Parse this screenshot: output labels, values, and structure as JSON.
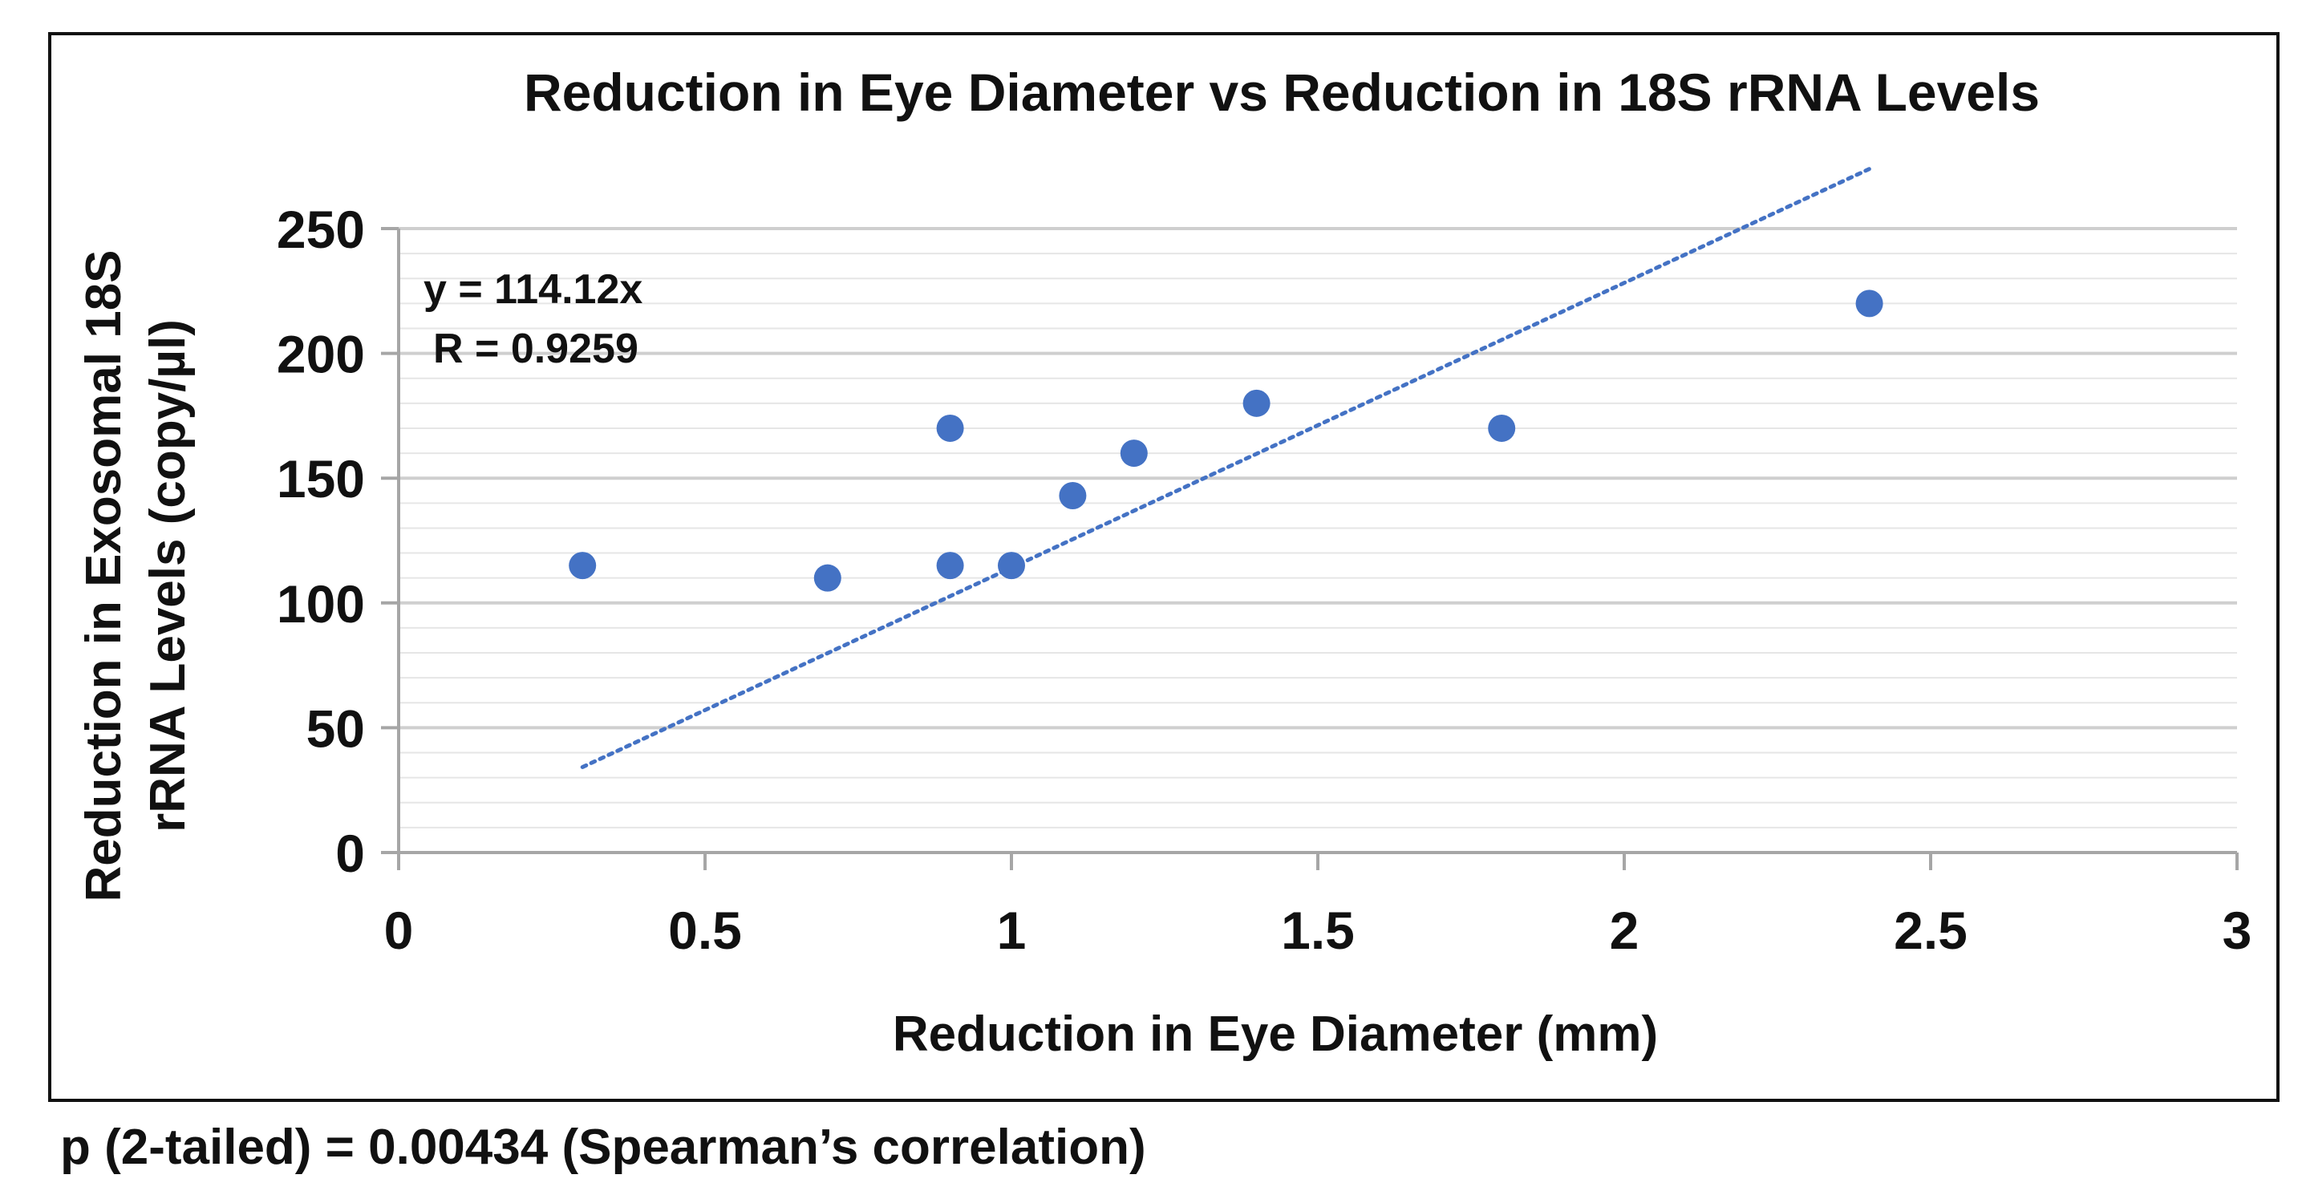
{
  "chart_data": {
    "type": "scatter",
    "title": "Reduction in Eye Diameter vs Reduction in 18S rRNA Levels",
    "xlabel": "Reduction in Eye Diameter (mm)",
    "ylabel_lines": [
      "Reduction in Exosomal 18S",
      "rRNA Levels (copy/µl)"
    ],
    "xlim": [
      0,
      3
    ],
    "ylim": [
      0,
      250
    ],
    "x_ticks": [
      "0",
      "0.5",
      "1",
      "1.5",
      "2",
      "2.5",
      "3"
    ],
    "x_tick_values": [
      0,
      0.5,
      1,
      1.5,
      2,
      2.5,
      3
    ],
    "y_ticks": [
      "0",
      "50",
      "100",
      "150",
      "200",
      "250"
    ],
    "y_tick_values": [
      0,
      50,
      100,
      150,
      200,
      250
    ],
    "minor_grid_step": 10,
    "grid": true,
    "series": [
      {
        "x": [
          0.3,
          0.7,
          0.9,
          0.9,
          1.0,
          1.1,
          1.2,
          1.4,
          1.8,
          2.4
        ],
        "y": [
          115,
          110,
          170,
          115,
          115,
          143,
          160,
          180,
          170,
          220
        ]
      }
    ],
    "trendline": {
      "type": "linear",
      "slope": 114.12,
      "x_range": [
        0.3,
        2.4
      ],
      "style": "dotted"
    },
    "annotations": [
      "y = 114.12x",
      "R = 0.9259"
    ],
    "colors": {
      "points": "#4472C4",
      "trendline": "#4472C4",
      "grid": "#d9d9d9",
      "axis": "#a6a6a6"
    }
  },
  "footnote": "p (2-tailed) = 0.00434 (Spearman’s correlation)"
}
